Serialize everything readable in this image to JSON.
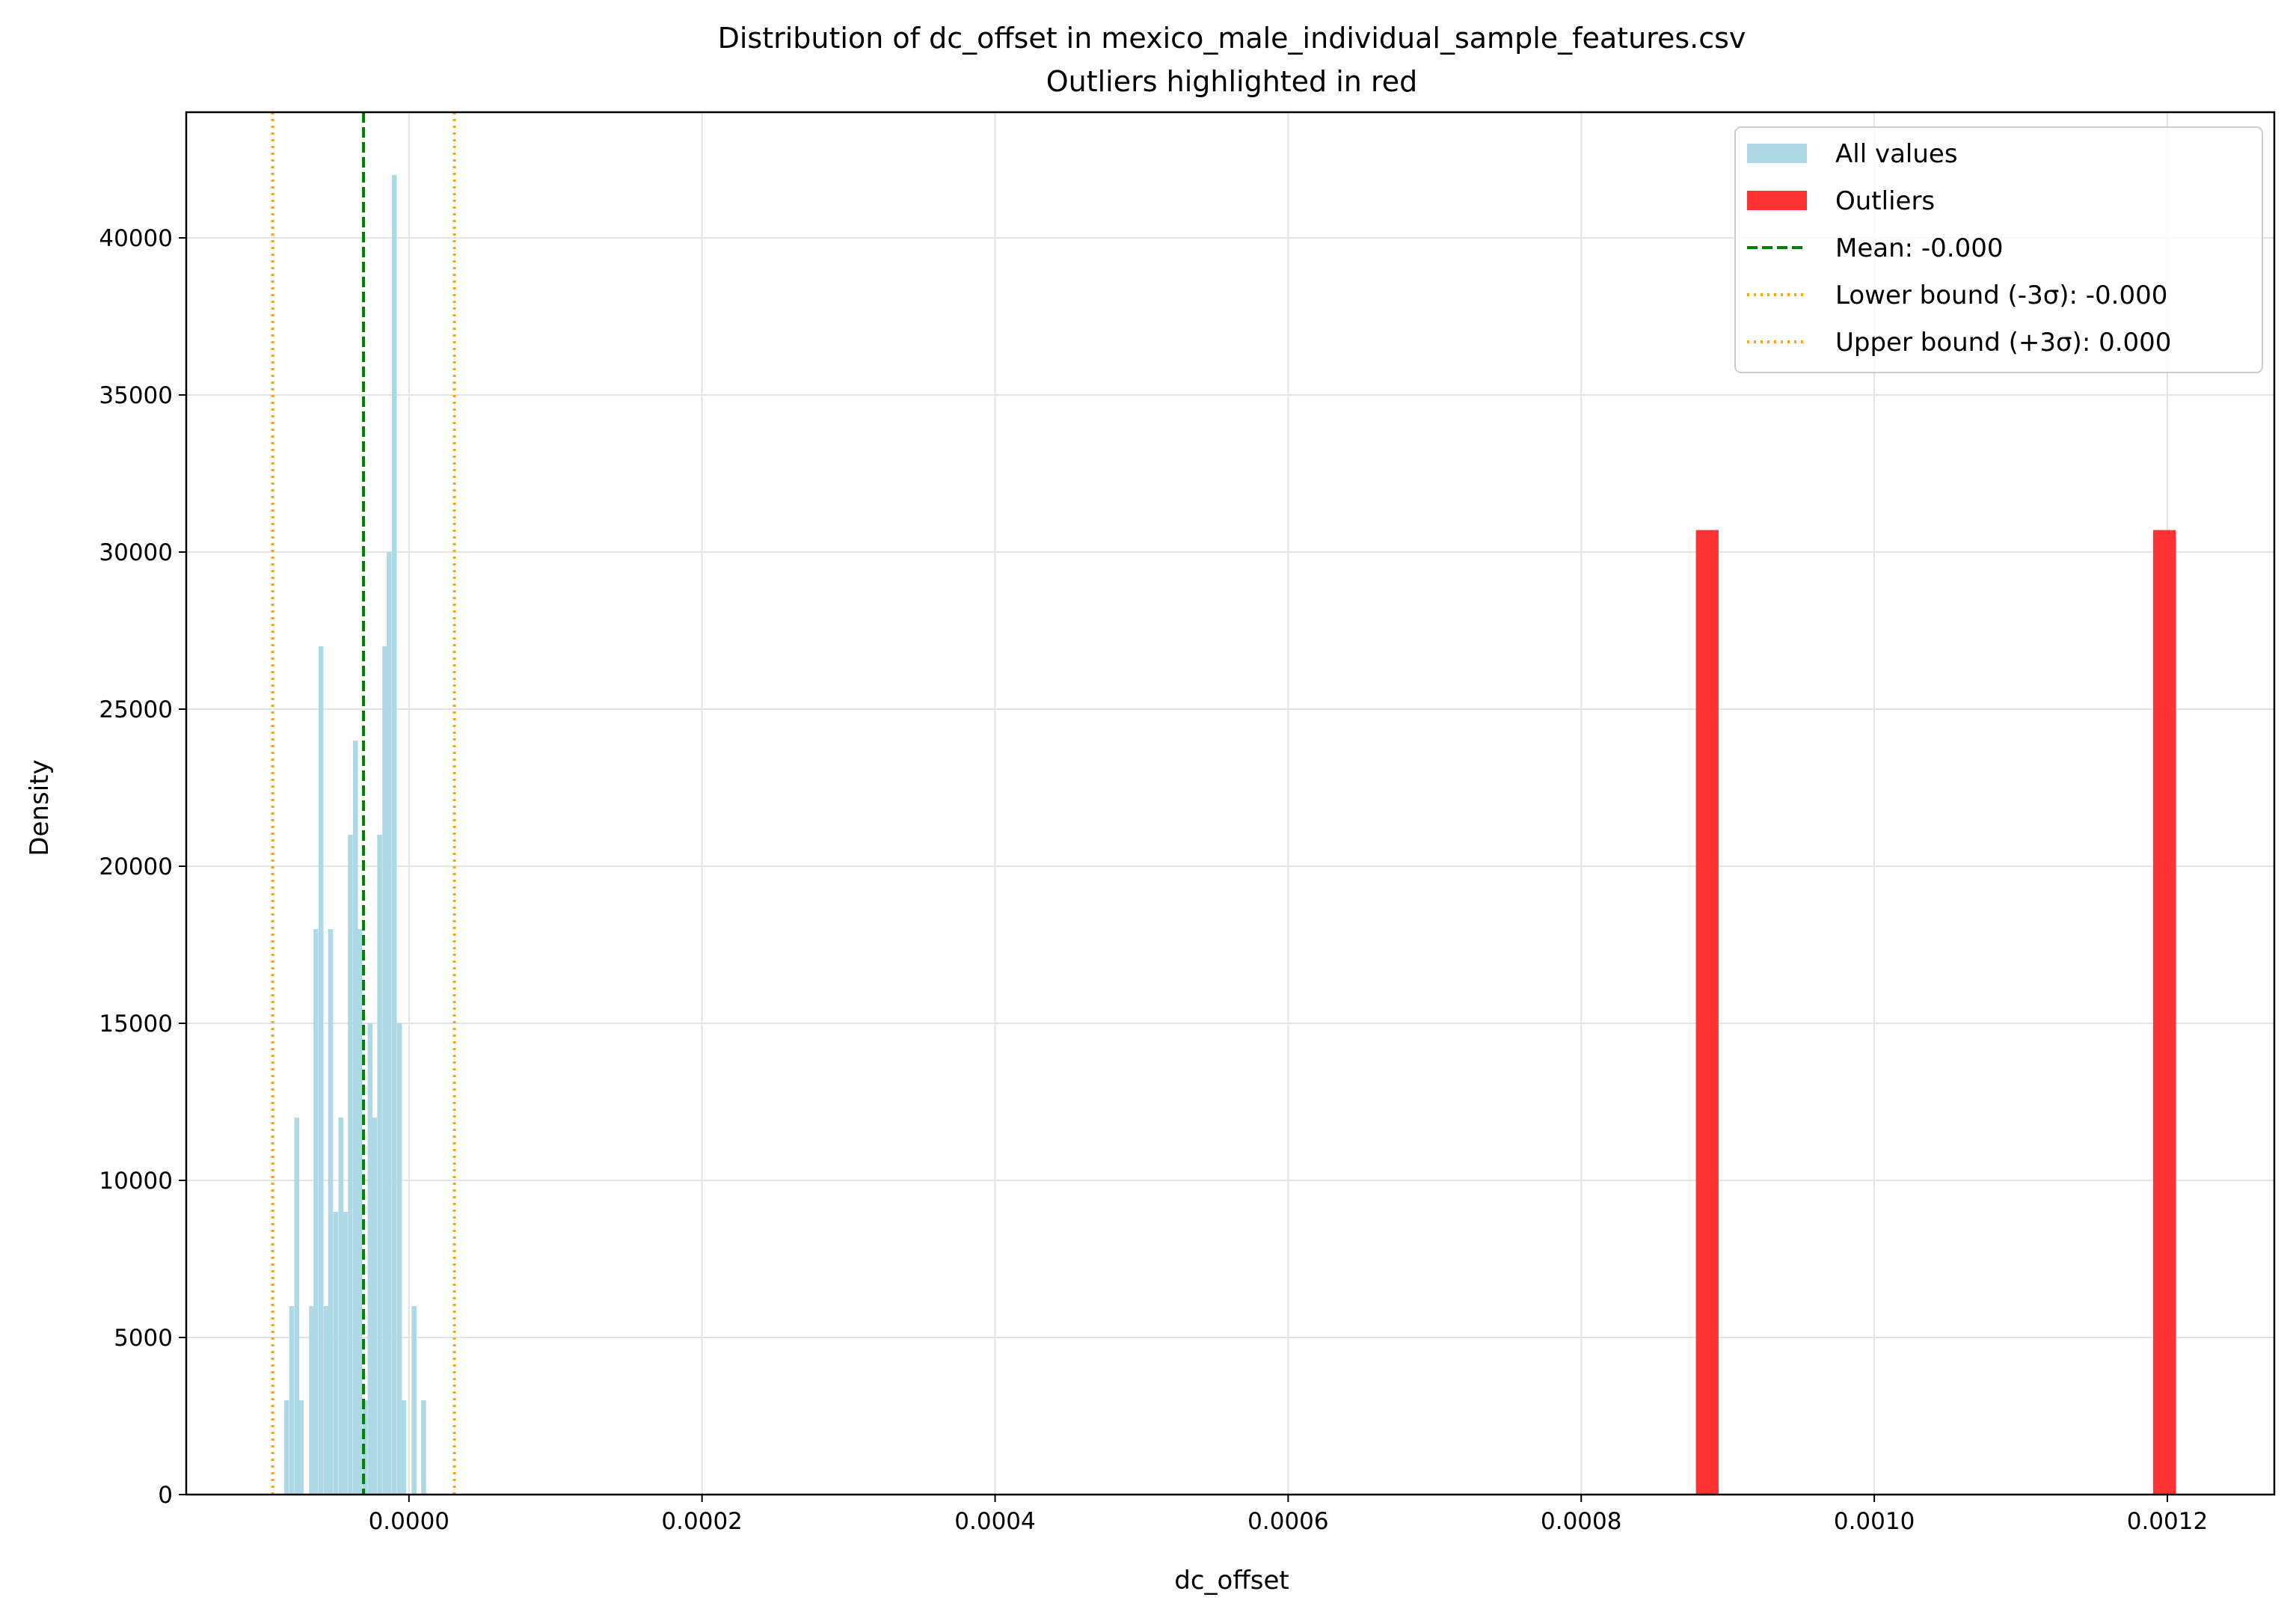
{
  "chart_data": {
    "type": "bar",
    "title": "Distribution of dc_offset in mexico_male_individual_sample_features.csv",
    "subtitle": "Outliers highlighted in red",
    "xlabel": "dc_offset",
    "ylabel": "Density",
    "xlim": [
      -0.000152,
      0.001273
    ],
    "ylim": [
      0,
      44000
    ],
    "xticks": [
      0.0,
      0.0002,
      0.0004,
      0.0006,
      0.0008,
      0.001,
      0.0012
    ],
    "xtick_labels": [
      "0.0000",
      "0.0002",
      "0.0004",
      "0.0006",
      "0.0008",
      "0.0010",
      "0.0012"
    ],
    "yticks": [
      0,
      5000,
      10000,
      15000,
      20000,
      25000,
      30000,
      35000,
      40000
    ],
    "ytick_labels": [
      "0",
      "5000",
      "10000",
      "15000",
      "20000",
      "25000",
      "30000",
      "35000",
      "40000"
    ],
    "grid": true,
    "legend_position": "top-right",
    "series": [
      {
        "name": "All values",
        "color": "#add8e6",
        "bin_width": 3.33e-06,
        "bins": [
          {
            "x": -8.35e-05,
            "y": 3000
          },
          {
            "x": -8e-05,
            "y": 6000
          },
          {
            "x": -7.65e-05,
            "y": 12000
          },
          {
            "x": -7.35e-05,
            "y": 3000
          },
          {
            "x": -7e-05,
            "y": 0
          },
          {
            "x": -6.65e-05,
            "y": 6000
          },
          {
            "x": -6.35e-05,
            "y": 18000
          },
          {
            "x": -6e-05,
            "y": 27000
          },
          {
            "x": -5.65e-05,
            "y": 6000
          },
          {
            "x": -5.35e-05,
            "y": 18000
          },
          {
            "x": -5e-05,
            "y": 9000
          },
          {
            "x": -4.65e-05,
            "y": 12000
          },
          {
            "x": -4.35e-05,
            "y": 9000
          },
          {
            "x": -4e-05,
            "y": 21000
          },
          {
            "x": -3.65e-05,
            "y": 24000
          },
          {
            "x": -3.35e-05,
            "y": 18000
          },
          {
            "x": -3e-05,
            "y": 3000
          },
          {
            "x": -2.65e-05,
            "y": 15000
          },
          {
            "x": -2.35e-05,
            "y": 12000
          },
          {
            "x": -2e-05,
            "y": 21000
          },
          {
            "x": -1.65e-05,
            "y": 27000
          },
          {
            "x": -1.35e-05,
            "y": 30000
          },
          {
            "x": -1e-05,
            "y": 42000
          },
          {
            "x": -6.5e-06,
            "y": 15000
          },
          {
            "x": -3.5e-06,
            "y": 3000
          },
          {
            "x": 0.0,
            "y": 0
          },
          {
            "x": 3.5e-06,
            "y": 6000
          },
          {
            "x": 6.5e-06,
            "y": 0
          },
          {
            "x": 1e-05,
            "y": 3000
          }
        ]
      },
      {
        "name": "Outliers",
        "color": "#ff3333",
        "bin_width": 1.55e-05,
        "bins": [
          {
            "x": 0.000886,
            "y": 30700
          },
          {
            "x": 0.001198,
            "y": 30700
          }
        ]
      }
    ],
    "reference_lines": [
      {
        "name": "Mean: -0.000",
        "x": -3.1e-05,
        "color": "#008000",
        "style": "dashed"
      },
      {
        "name": "Lower bound (-3σ): -0.000",
        "x": -9.3e-05,
        "color": "#ffa500",
        "style": "dotted"
      },
      {
        "name": "Upper bound (+3σ): 0.000",
        "x": 3.1e-05,
        "color": "#ffa500",
        "style": "dotted"
      }
    ],
    "legend": [
      {
        "label": "All values",
        "kind": "patch",
        "color": "#add8e6"
      },
      {
        "label": "Outliers",
        "kind": "patch",
        "color": "#ff3333"
      },
      {
        "label": "Mean: -0.000",
        "kind": "line",
        "color": "#008000",
        "style": "dashed"
      },
      {
        "label": "Lower bound (-3σ): -0.000",
        "kind": "line",
        "color": "#ffa500",
        "style": "dotted"
      },
      {
        "label": "Upper bound (+3σ): 0.000",
        "kind": "line",
        "color": "#ffa500",
        "style": "dotted"
      }
    ]
  }
}
